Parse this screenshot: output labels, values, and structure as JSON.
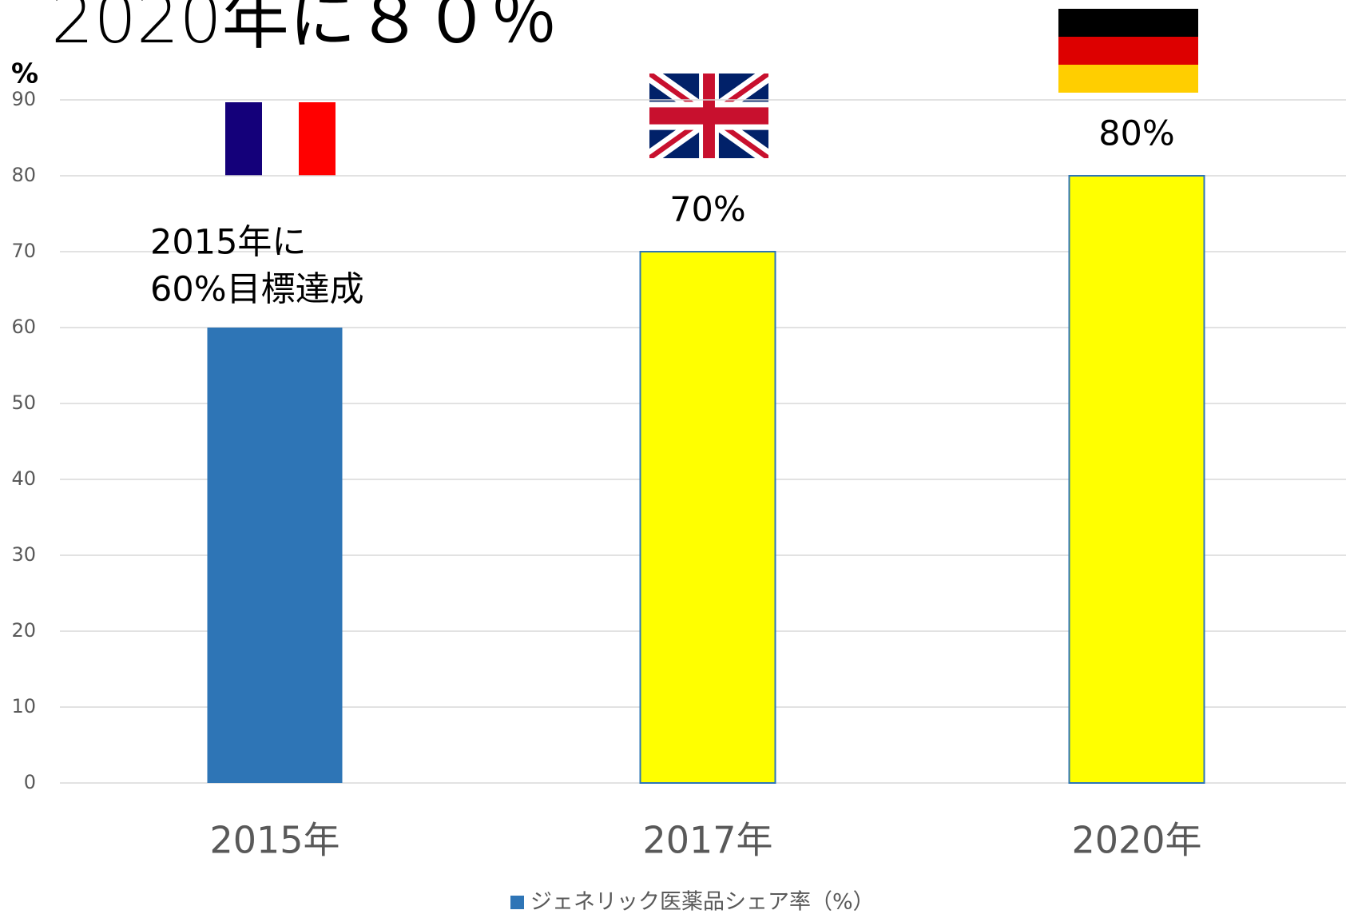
{
  "chart_data": {
    "type": "bar",
    "title": "2020年に８０％",
    "y_label": "%",
    "categories": [
      "2015年",
      "2017年",
      "2020年"
    ],
    "series": [
      {
        "name": "ジェネリック医薬品シェア率（%）",
        "color": "#2e75b6",
        "values": [
          60,
          70,
          80
        ],
        "value_labels": [
          null,
          "70%",
          "80%"
        ]
      }
    ],
    "bar_colors": [
      "#2e75b6",
      "#ffff00",
      "#ffff00"
    ],
    "annotations": [
      "2015年に",
      "60%目標達成"
    ],
    "ylim": [
      0,
      90
    ],
    "yticks": [
      0,
      10,
      20,
      30,
      40,
      50,
      60,
      70,
      80,
      90
    ],
    "grid": true,
    "legend": "bottom"
  }
}
